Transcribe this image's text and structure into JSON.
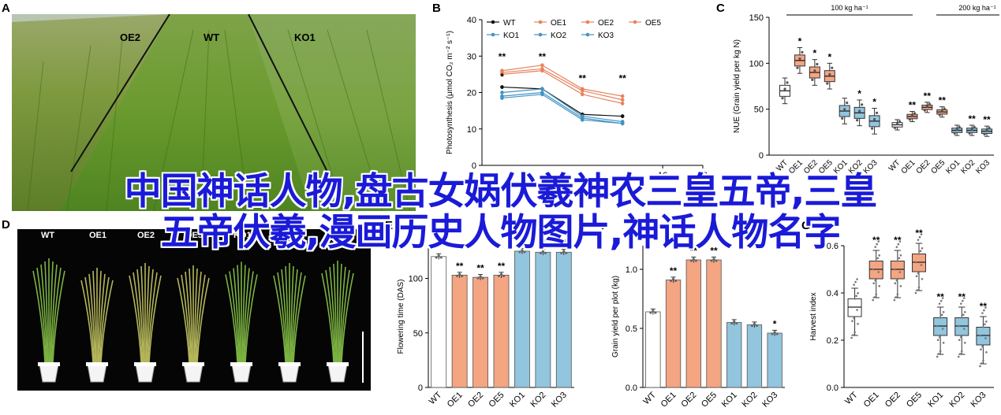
{
  "panels": {
    "a": {
      "letter": "A",
      "labels": [
        "OE2",
        "WT",
        "KO1"
      ]
    },
    "b": {
      "letter": "B"
    },
    "c": {
      "letter": "C",
      "group_labels": [
        "100 kg ha⁻¹",
        "200 kg ha⁻¹"
      ]
    },
    "d": {
      "letter": "D",
      "labels": [
        "WT",
        "OE1",
        "OE2",
        "OE5",
        "KO1",
        "KO2",
        "KO3"
      ]
    },
    "e": {
      "letter": "E"
    },
    "f": {
      "letter": "F"
    },
    "g": {
      "letter": "G"
    }
  },
  "overlay": {
    "line1": "中国神话人物,盘古女娲伏羲神农三皇五帝,三皇",
    "line2": "五帝伏羲,漫画历史人物图片,神话人物名字"
  },
  "colors": {
    "wt": "#ffffff",
    "oe": "#f4a582",
    "oe_line": "#e8825c",
    "ko": "#92c5de",
    "ko_line": "#4393c3",
    "overlay_text": "#1a1ad8"
  },
  "chart_data": [
    {
      "id": "B",
      "type": "line",
      "ylabel": "Photosynthesis (μmol CO₂ m⁻² s⁻¹)",
      "ylim": [
        0,
        40
      ],
      "yticks": [
        "0",
        "10",
        "20",
        "30",
        "40"
      ],
      "x": [
        8,
        10,
        12,
        14
      ],
      "xticks": [
        "16",
        "18"
      ],
      "legend": [
        "WT",
        "OE1",
        "OE2",
        "OE5",
        "KO1",
        "KO2",
        "KO3"
      ],
      "series": [
        {
          "name": "WT",
          "values": [
            21.5,
            21,
            14,
            13.5
          ]
        },
        {
          "name": "OE1",
          "values": [
            25.5,
            26.5,
            20.5,
            18
          ]
        },
        {
          "name": "OE2",
          "values": [
            26,
            27.5,
            21,
            19
          ]
        },
        {
          "name": "OE5",
          "values": [
            25,
            26,
            19.5,
            17
          ]
        },
        {
          "name": "KO1",
          "values": [
            19,
            20,
            13,
            11.5
          ]
        },
        {
          "name": "KO2",
          "values": [
            20,
            21,
            13.5,
            12
          ]
        },
        {
          "name": "KO3",
          "values": [
            18.5,
            19.5,
            12.5,
            11.5
          ]
        }
      ],
      "annotations": [
        "**",
        "*",
        "**",
        "**",
        "**"
      ]
    },
    {
      "id": "C",
      "type": "box",
      "ylabel": "NUE (Grain yield per kg N)",
      "ylim": [
        0,
        150
      ],
      "yticks": [
        "0",
        "50",
        "100",
        "150"
      ],
      "categories": [
        "WT",
        "OE1",
        "OE2",
        "OE5",
        "KO1",
        "KO2",
        "KO3",
        "WT",
        "OE1",
        "OE2",
        "OE5",
        "KO1",
        "KO2",
        "KO3"
      ],
      "medians": [
        70,
        103,
        90,
        86,
        48,
        46,
        37,
        33,
        42,
        52,
        47,
        27,
        27,
        26
      ],
      "stars": [
        "",
        "*",
        "*",
        "*",
        "",
        "*",
        "*",
        "",
        "**",
        "**",
        "**",
        "",
        "**",
        "**"
      ]
    },
    {
      "id": "E",
      "type": "bar",
      "ylabel": "Flowering time (DAS)",
      "ylim": [
        0,
        130
      ],
      "yticks": [
        "0",
        "50",
        "100"
      ],
      "categories": [
        "WT",
        "OE1",
        "OE2",
        "OE5",
        "KO1",
        "KO2",
        "KO3"
      ],
      "values": [
        120,
        103,
        101,
        103,
        125,
        124,
        124
      ],
      "stars": [
        "",
        "**",
        "**",
        "**",
        "**",
        "**",
        "**"
      ]
    },
    {
      "id": "F",
      "type": "bar",
      "ylabel": "Grain yield per plot (kg)",
      "ylim": [
        0,
        1.2
      ],
      "yticks": [
        "0.0",
        "0.5",
        "1.0"
      ],
      "categories": [
        "WT",
        "OE1",
        "OE2",
        "OE5",
        "KO1",
        "KO2",
        "KO3"
      ],
      "values": [
        0.64,
        0.91,
        1.08,
        1.08,
        0.55,
        0.53,
        0.46
      ],
      "stars": [
        "",
        "**",
        "**",
        "**",
        "",
        "",
        "*"
      ]
    },
    {
      "id": "G",
      "type": "box",
      "ylabel": "Harvest index",
      "ylim": [
        0,
        0.6
      ],
      "yticks": [
        "0.0",
        "0.2",
        "0.4",
        "0.6"
      ],
      "categories": [
        "WT",
        "OE1",
        "OE2",
        "OE5",
        "KO1",
        "KO2",
        "KO3"
      ],
      "medians": [
        0.34,
        0.5,
        0.5,
        0.53,
        0.26,
        0.26,
        0.22
      ],
      "stars": [
        "",
        "**",
        "**",
        "**",
        "**",
        "**",
        "**"
      ]
    }
  ]
}
